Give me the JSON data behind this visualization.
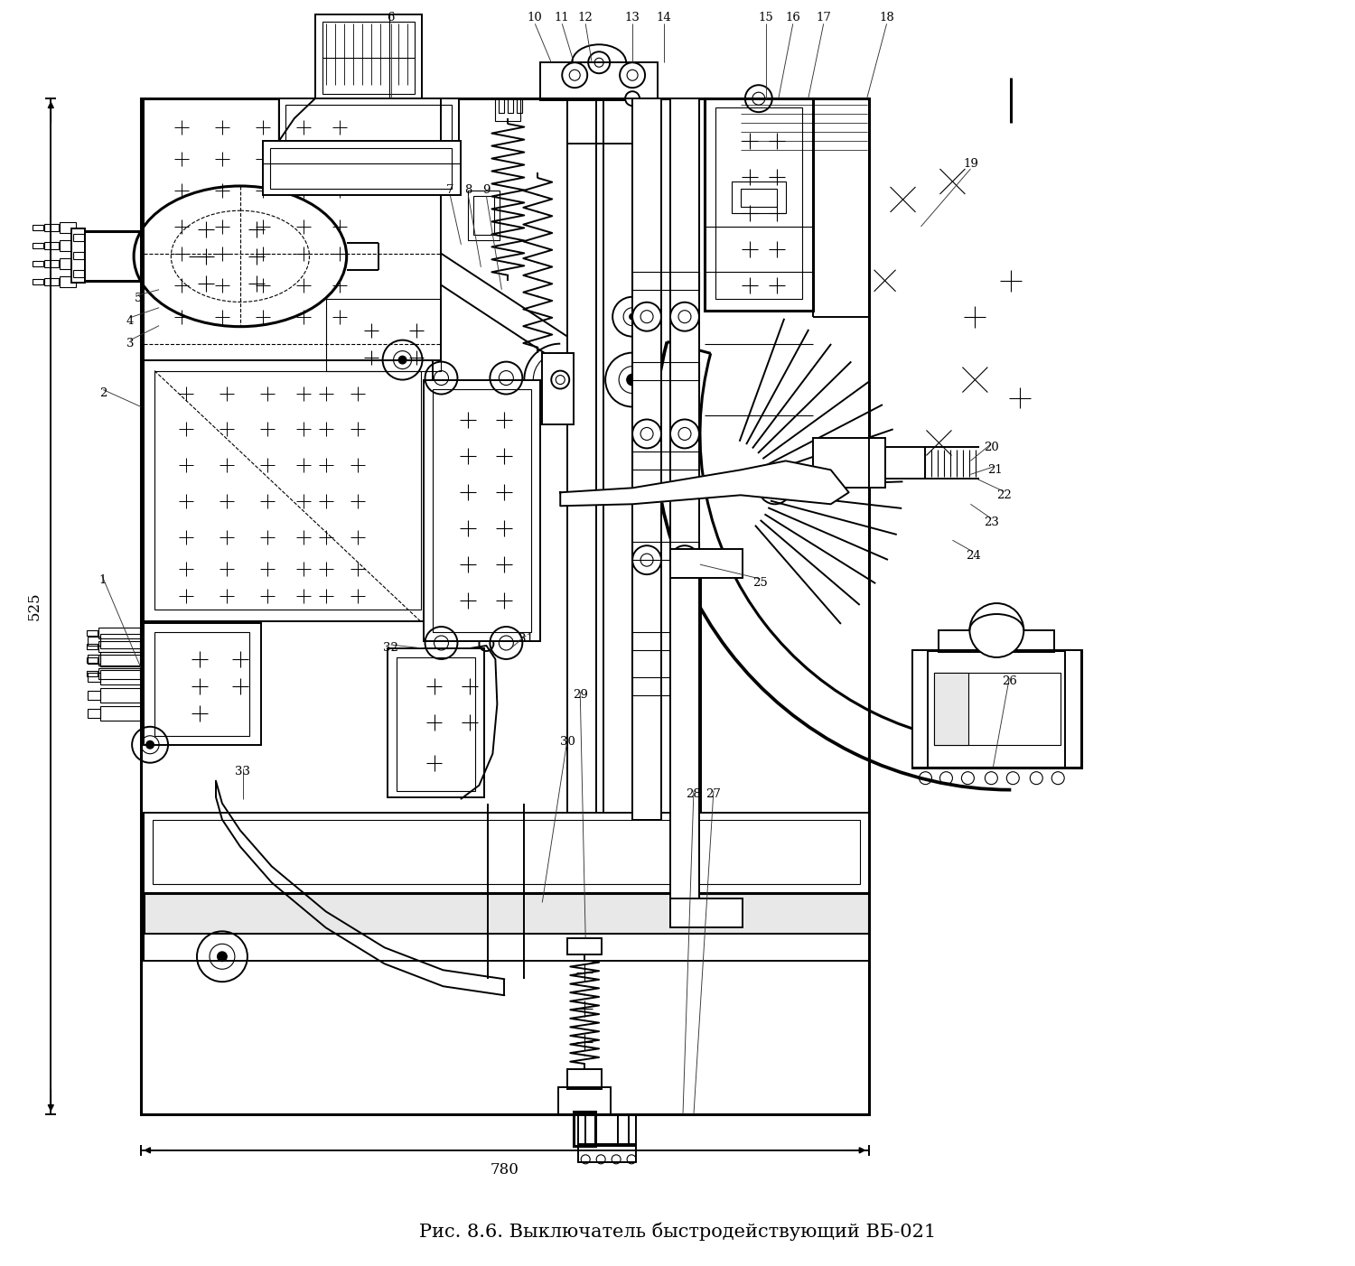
{
  "title": "Рис. 8.6. Выключатель быстродействующий ВБ-021",
  "title_fontsize": 15,
  "bg_color": "#ffffff",
  "line_color": "#000000",
  "fig_width": 15.0,
  "fig_height": 14.02,
  "dim_525": "525",
  "dim_780": "780"
}
